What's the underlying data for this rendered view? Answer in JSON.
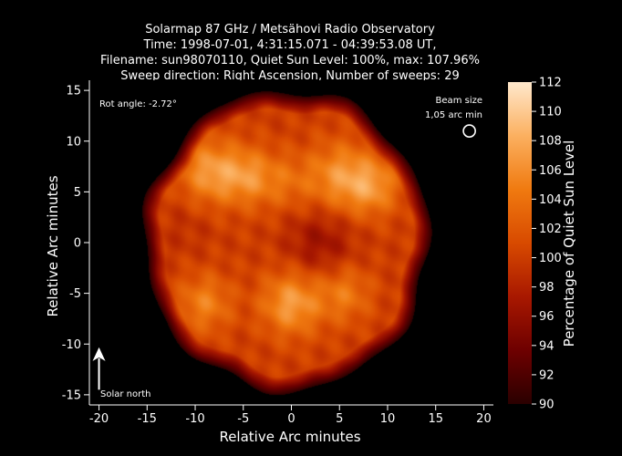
{
  "chart_data": {
    "type": "heatmap",
    "title_lines": [
      "Solarmap 87 GHz / Metsähovi Radio Observatory",
      "Time: 1998-07-01,  4:31:15.071 - 04:39:53.08 UT,",
      "Filename: sun98070110, Quiet Sun Level: 100%, max: 107.96%",
      "Sweep direction: Right Ascension, Number of sweeps: 29"
    ],
    "xlabel": "Relative Arc minutes",
    "ylabel": "Relative Arc minutes",
    "xlim": [
      -21,
      21
    ],
    "ylim": [
      -16,
      16
    ],
    "x_ticks": [
      -20,
      -15,
      -10,
      -5,
      0,
      5,
      10,
      15,
      20
    ],
    "y_ticks": [
      -15,
      -10,
      -5,
      0,
      5,
      10,
      15
    ],
    "colorbar": {
      "label": "Percentage of Quiet Sun Level",
      "min": 90,
      "max": 112,
      "ticks": [
        90,
        92,
        94,
        96,
        98,
        100,
        102,
        104,
        106,
        108,
        110,
        112
      ],
      "colors": [
        "#2a0000",
        "#6e0000",
        "#a81800",
        "#d84a00",
        "#f07a10",
        "#fbb060",
        "#ffe8cc"
      ]
    },
    "disk": {
      "center": [
        -0.5,
        0.2
      ],
      "radius": 14.2,
      "base_level": 100
    },
    "features": [
      {
        "x": -8.5,
        "y": 7.0,
        "level": 106.5,
        "sigma": 2.2
      },
      {
        "x": -4.5,
        "y": 6.5,
        "level": 105.5,
        "sigma": 2.0
      },
      {
        "x": 5.0,
        "y": 6.5,
        "level": 106.0,
        "sigma": 2.4
      },
      {
        "x": 8.5,
        "y": 5.5,
        "level": 105.5,
        "sigma": 2.0
      },
      {
        "x": -0.5,
        "y": 6.0,
        "level": 103.0,
        "sigma": 2.0
      },
      {
        "x": -9.0,
        "y": -6.0,
        "level": 105.0,
        "sigma": 2.0
      },
      {
        "x": 0.0,
        "y": -6.0,
        "level": 107.0,
        "sigma": 2.2
      },
      {
        "x": 5.5,
        "y": -5.0,
        "level": 104.5,
        "sigma": 2.0
      },
      {
        "x": 3.0,
        "y": 0.0,
        "level": 96.5,
        "sigma": 2.5
      },
      {
        "x": -11.0,
        "y": 1.5,
        "level": 99.0,
        "sigma": 2.0
      }
    ],
    "annotations": {
      "rot_angle": "Rot angle: -2.72°",
      "beam_size_line1": "Beam size",
      "beam_size_line2": "1,05 arc min",
      "beam_position": [
        18.5,
        11.0
      ],
      "beam_diameter_arcmin": 1.05,
      "north_arrow_label": "Solar north",
      "north_arrow_from": [
        -20.0,
        -14.5
      ],
      "north_arrow_to": [
        -20.0,
        -10.5
      ]
    },
    "grid": false
  }
}
